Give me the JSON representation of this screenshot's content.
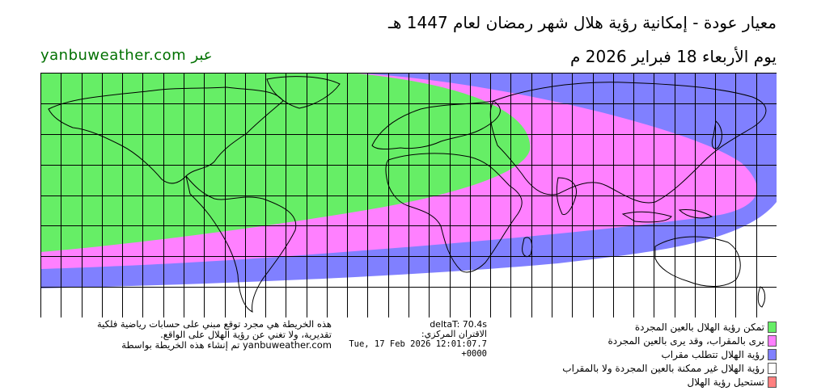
{
  "header": {
    "title": "معيار عودة - إمكانية رؤية هلال شهر رمضان لعام 1447 هـ",
    "date": "يوم الأربعاء 18 فبراير 2026 م",
    "source": "yanbuweather.com عبر"
  },
  "map": {
    "description_colors": {
      "green": "#66ee66",
      "magenta": "#ff80ff",
      "blue": "#8080ff",
      "white": "#ffffff",
      "red": "#ff8080"
    },
    "grid": {
      "lon_step_deg": 10,
      "lat_step_deg": 10
    }
  },
  "footer": {
    "disclaimer": [
      "هذه الخريطة هي مجرد توقع مبني على حسابات رياضية فلكية",
      "تقديرية، ولا تغني عن رؤية الهلال على الواقع.",
      "yanbuweather.com  تم إنشاء هذه الخريطة بواسطة"
    ],
    "deltaT_label": "deltaT: 70.4s",
    "conjunction_label": "الاقتران المركزي:",
    "conjunction_time": "Tue, 17 Feb 2026 12:01:07.7 +0000"
  },
  "legend": [
    {
      "label": "تمكن رؤية الهلال بالعين المجردة",
      "color": "#66ee66"
    },
    {
      "label": "يرى بالمقراب، وقد يرى بالعين المجردة",
      "color": "#ff80ff"
    },
    {
      "label": "رؤية الهلال تتطلب مقراب",
      "color": "#8080ff"
    },
    {
      "label": "رؤية الهلال غير ممكنة بالعين المجردة ولا بالمقراب",
      "color": "#ffffff"
    },
    {
      "label": "تستحيل رؤية الهلال",
      "color": "#ff8080"
    }
  ]
}
